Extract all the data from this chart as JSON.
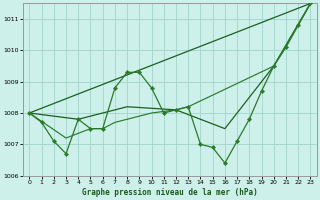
{
  "xlabel": "Graphe pression niveau de la mer (hPa)",
  "background_color": "#cdf0ea",
  "grid_color": "#a8d8d0",
  "ylim": [
    1006,
    1011.5
  ],
  "yticks": [
    1006,
    1007,
    1008,
    1009,
    1010,
    1011
  ],
  "xlim": [
    -0.5,
    23.5
  ],
  "xticks": [
    0,
    1,
    2,
    3,
    4,
    5,
    6,
    7,
    8,
    9,
    10,
    11,
    12,
    13,
    14,
    15,
    16,
    17,
    18,
    19,
    20,
    21,
    22,
    23
  ],
  "series": [
    {
      "x": [
        0,
        1,
        2,
        3,
        4,
        5,
        6,
        7,
        8,
        9,
        10,
        11,
        12,
        13,
        14,
        15,
        16,
        17,
        18,
        19,
        20,
        21,
        22,
        23
      ],
      "y": [
        1008.0,
        1007.7,
        1007.1,
        1006.7,
        1007.8,
        1007.5,
        1007.5,
        1008.8,
        1009.3,
        1009.3,
        1008.8,
        1008.0,
        1008.1,
        1008.2,
        1007.0,
        1006.9,
        1006.4,
        1007.1,
        1007.8,
        1008.7,
        1009.5,
        1010.1,
        1010.8,
        1011.5
      ],
      "color": "#2a7a2a",
      "lw": 0.9,
      "marker": "D",
      "ms": 2.2,
      "zorder": 3
    },
    {
      "x": [
        0,
        4,
        8,
        12,
        16,
        20,
        23
      ],
      "y": [
        1008.0,
        1007.8,
        1008.2,
        1008.1,
        1007.5,
        1009.5,
        1011.5
      ],
      "color": "#1a6020",
      "lw": 0.9,
      "marker": null,
      "ms": 0,
      "zorder": 2
    },
    {
      "x": [
        0,
        23
      ],
      "y": [
        1008.0,
        1011.5
      ],
      "color": "#1a6020",
      "lw": 0.9,
      "marker": null,
      "ms": 0,
      "zorder": 2
    },
    {
      "x": [
        0,
        3,
        5,
        6,
        7,
        10,
        12,
        13,
        20,
        23
      ],
      "y": [
        1008.0,
        1007.2,
        1007.5,
        1007.5,
        1007.7,
        1008.0,
        1008.1,
        1008.2,
        1009.5,
        1011.5
      ],
      "color": "#2a7a2a",
      "lw": 0.85,
      "marker": null,
      "ms": 0,
      "zorder": 2
    }
  ]
}
